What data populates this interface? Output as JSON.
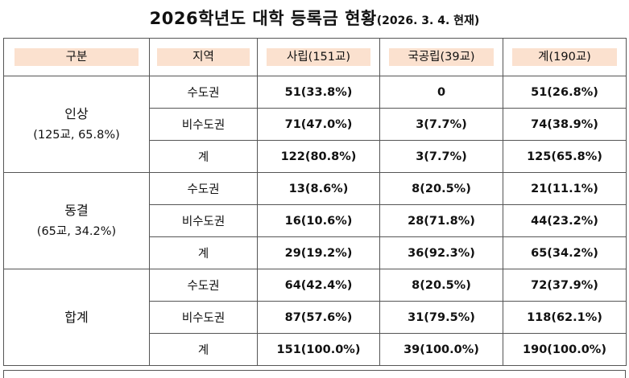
{
  "title": {
    "main": "2026학년도 대학 등록금 현황",
    "sub": "(2026. 3. 4. 현재)"
  },
  "headers": [
    "구분",
    "지역",
    "사립(151교)",
    "국공립(39교)",
    "계(190교)"
  ],
  "groups": [
    {
      "name": "인상",
      "sub": "(125교,  65.8%)",
      "rows": [
        {
          "region": "수도권",
          "private": "51(33.8%)",
          "public": "0",
          "total": "51(26.8%)"
        },
        {
          "region": "비수도권",
          "private": "71(47.0%)",
          "public": "3(7.7%)",
          "total": "74(38.9%)"
        },
        {
          "region": "계",
          "private": "122(80.8%)",
          "public": "3(7.7%)",
          "total": "125(65.8%)"
        }
      ]
    },
    {
      "name": "동결",
      "sub": "(65교,  34.2%)",
      "rows": [
        {
          "region": "수도권",
          "private": "13(8.6%)",
          "public": "8(20.5%)",
          "total": "21(11.1%)"
        },
        {
          "region": "비수도권",
          "private": "16(10.6%)",
          "public": "28(71.8%)",
          "total": "44(23.2%)"
        },
        {
          "region": "계",
          "private": "29(19.2%)",
          "public": "36(92.3%)",
          "total": "65(34.2%)"
        }
      ]
    },
    {
      "name": "합계",
      "sub": "",
      "rows": [
        {
          "region": "수도권",
          "private": "64(42.4%)",
          "public": "8(20.5%)",
          "total": "72(37.9%)"
        },
        {
          "region": "비수도권",
          "private": "87(57.6%)",
          "public": "31(79.5%)",
          "total": "118(62.1%)"
        },
        {
          "region": "계",
          "private": "151(100.0%)",
          "public": "39(100.0%)",
          "total": "190(100.0%)"
        }
      ]
    }
  ],
  "colors": {
    "header_fill": "#fbe1cf",
    "border": "#555555"
  }
}
